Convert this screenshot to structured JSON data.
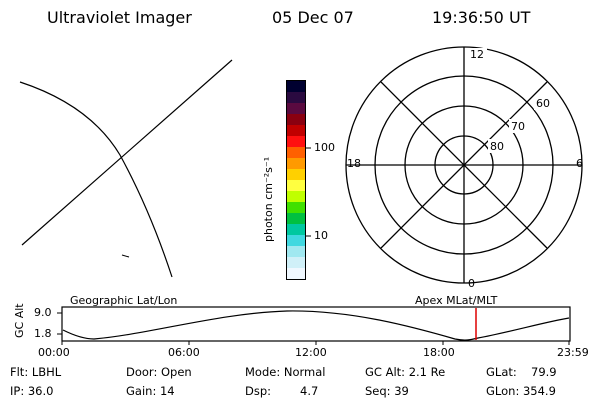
{
  "header": {
    "instrument": "Ultraviolet Imager",
    "date": "05 Dec 07",
    "time": "19:36:50 UT"
  },
  "colorbar": {
    "unit_label": "photon cm⁻²s⁻¹",
    "ticks": [
      "100",
      "10"
    ],
    "colors": [
      "#000030",
      "#2a0a40",
      "#5a0a40",
      "#8a0010",
      "#c00000",
      "#ff1010",
      "#ff6000",
      "#ff9a00",
      "#ffd000",
      "#ffff40",
      "#c0ff00",
      "#40e000",
      "#00c040",
      "#00c8a0",
      "#40d8e0",
      "#a0e8f0",
      "#d0f0f8",
      "#f0f8ff"
    ]
  },
  "polar_plot": {
    "mlt_labels": [
      "12",
      "18",
      "6",
      "0"
    ],
    "lat_labels": [
      "60",
      "70",
      "80"
    ]
  },
  "timeline": {
    "left_title": "Geographic Lat/Lon",
    "right_title": "Apex MLat/MLT",
    "y_label": "GC Alt",
    "y_ticks": [
      "9.0",
      "1.8"
    ],
    "x_ticks": [
      "00:00",
      "06:00",
      "12:00",
      "18:00",
      "23:59"
    ],
    "marker_color": "#dd0000"
  },
  "status": {
    "flt": "Flt: LBHL",
    "ip": "IP: 36.0",
    "door": "Door: Open",
    "gain": "Gain: 14",
    "mode": "Mode: Normal",
    "dsp": "Dsp:",
    "dsp_value": "4.7",
    "gc_alt": "GC Alt: 2.1 Re",
    "seq": "Seq: 39",
    "glat": "GLat:",
    "glat_value": "79.9",
    "glon": "GLon: 354.9"
  }
}
